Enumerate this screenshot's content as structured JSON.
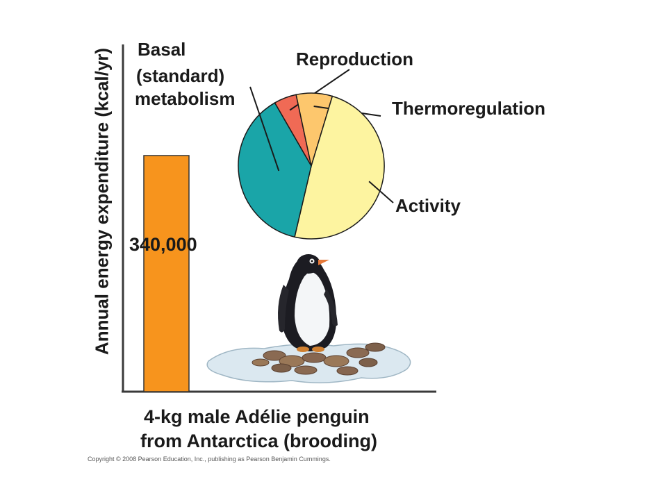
{
  "chart_data": [
    {
      "type": "bar",
      "ylabel": "Annual energy expenditure (kcal/yr)",
      "xlabel_lines": [
        "4-kg male Adélie penguin",
        "from Antarctica (brooding)"
      ],
      "categories": [
        ""
      ],
      "values": [
        340000
      ],
      "value_label": "340,000",
      "bar_color": "#f7941d",
      "ylim": [
        0,
        500000
      ],
      "grid": false
    },
    {
      "type": "pie",
      "slices": [
        {
          "label_lines": [
            "Reproduction"
          ],
          "value": 5,
          "color": "#f06a55"
        },
        {
          "label_lines": [
            "Thermoregulation"
          ],
          "value": 8,
          "color": "#fdc76d"
        },
        {
          "label_lines": [
            "Activity"
          ],
          "value": 49,
          "color": "#fdf4a0"
        },
        {
          "label_lines": [
            "Basal",
            "(standard)",
            "metabolism"
          ],
          "value": 38,
          "color": "#1aa5a8"
        }
      ]
    }
  ],
  "copyright": "Copyright © 2008 Pearson Education, Inc., publishing as Pearson Benjamin Cummings."
}
